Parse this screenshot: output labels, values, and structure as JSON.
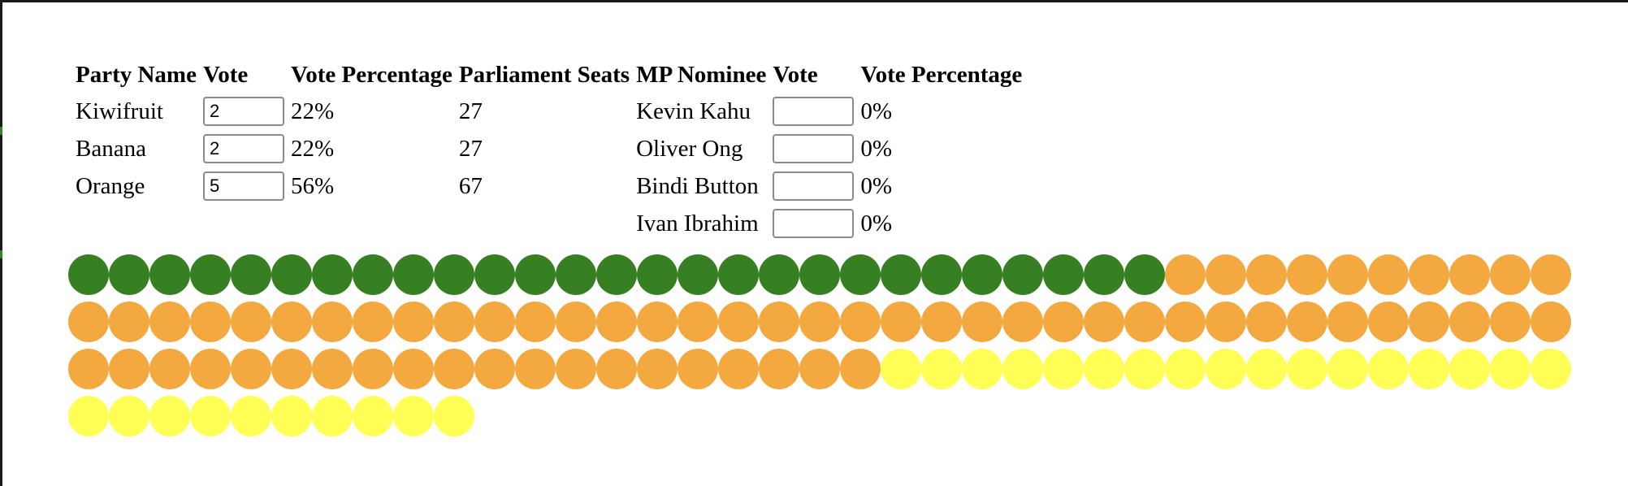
{
  "party_table": {
    "headers": [
      "Party Name",
      "Vote",
      "Vote Percentage",
      "Parliament Seats"
    ],
    "rows": [
      {
        "name": "Kiwifruit",
        "vote": "2",
        "percentage": "22%",
        "seats": "27",
        "seat_count": 27,
        "color": "#367f23"
      },
      {
        "name": "Banana",
        "vote": "2",
        "percentage": "22%",
        "seats": "27",
        "seat_count": 27,
        "color": "#ffff55"
      },
      {
        "name": "Orange",
        "vote": "5",
        "percentage": "56%",
        "seats": "67",
        "seat_count": 67,
        "color": "#f3a840"
      }
    ]
  },
  "nominee_table": {
    "headers": [
      "MP Nominee",
      "Vote",
      "Vote Percentage"
    ],
    "rows": [
      {
        "name": "Kevin Kahu",
        "vote": "",
        "percentage": "0%"
      },
      {
        "name": "Oliver Ong",
        "vote": "",
        "percentage": "0%"
      },
      {
        "name": "Bindi Button",
        "vote": "",
        "percentage": "0%"
      },
      {
        "name": "Ivan Ibrahim",
        "vote": "",
        "percentage": "0%"
      }
    ]
  },
  "seat_order": [
    "Kiwifruit",
    "Orange",
    "Banana"
  ],
  "seats_per_row": 37
}
